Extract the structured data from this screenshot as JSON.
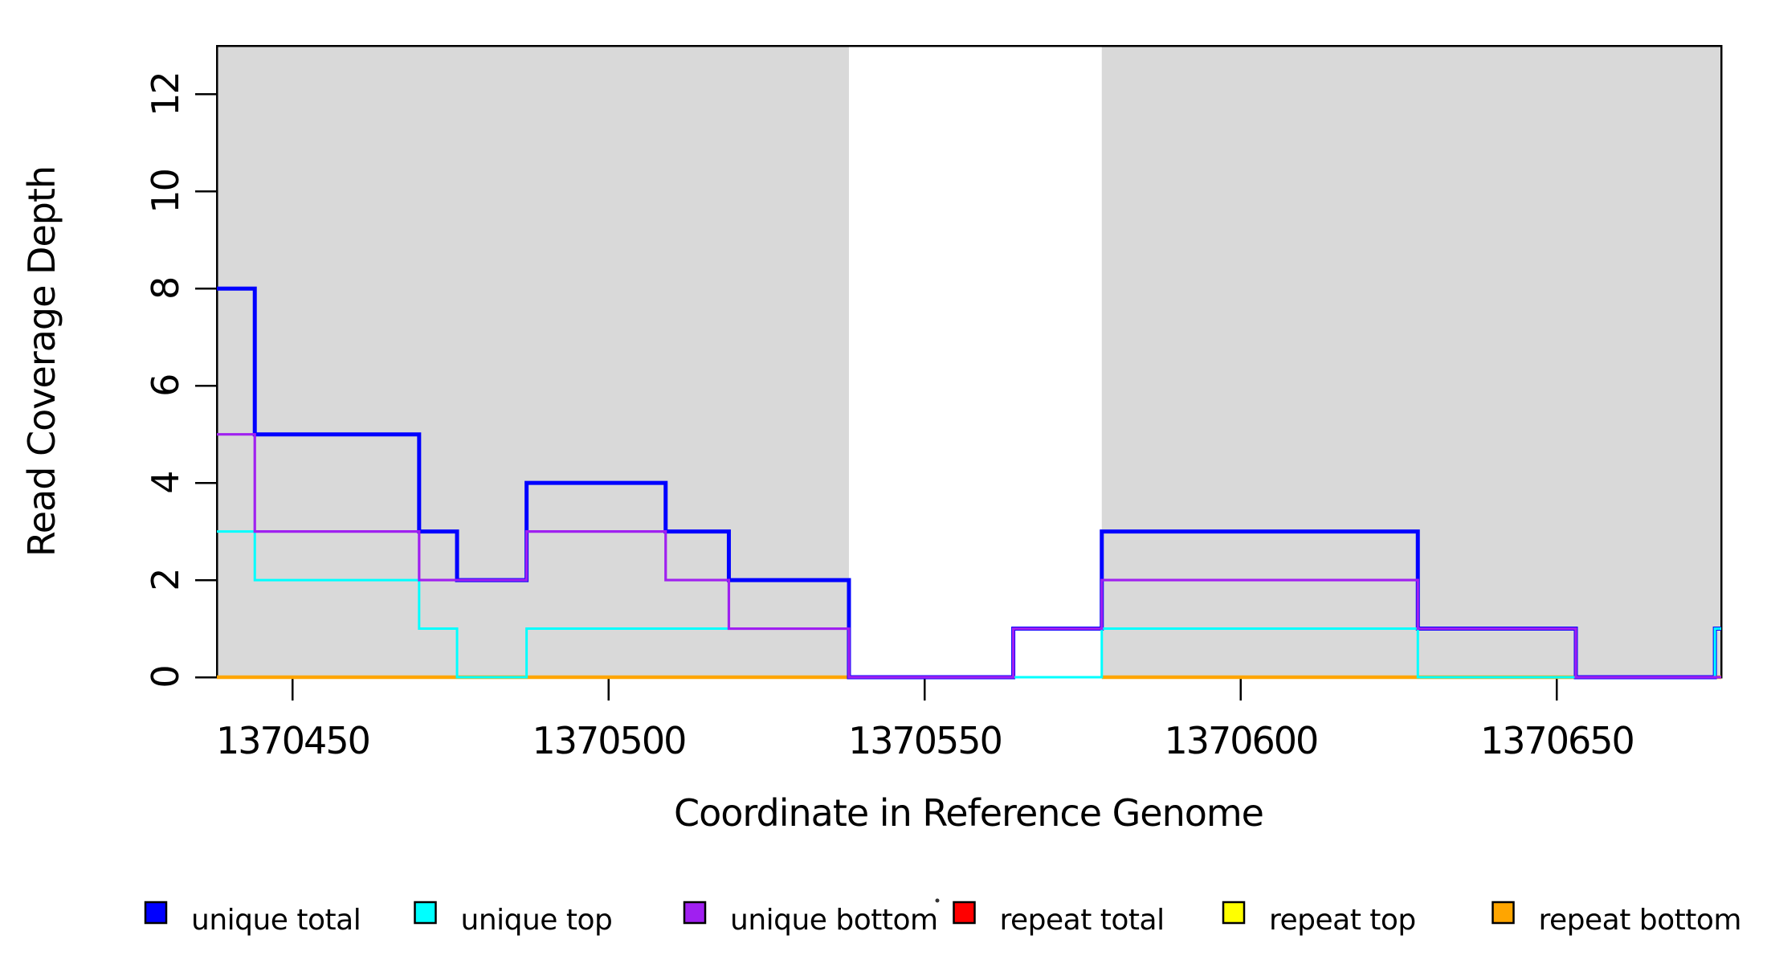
{
  "chart_data": {
    "type": "line",
    "subtype": "step-coverage-plot",
    "title": "",
    "xlabel": "Coordinate in Reference Genome",
    "ylabel": "Read Coverage Depth",
    "xlim": [
      1370438,
      1370676
    ],
    "ylim": [
      0,
      13
    ],
    "x_ticks": [
      1370450,
      1370500,
      1370550,
      1370600,
      1370650
    ],
    "y_ticks": [
      0,
      2,
      4,
      6,
      8,
      10,
      12
    ],
    "grid": false,
    "legend_position": "bottom-horizontal",
    "shaded_regions": [
      {
        "name": "repeat-region-1",
        "start": 1370438,
        "end": 1370538,
        "color": "#D9D9D9"
      },
      {
        "name": "repeat-region-2",
        "start": 1370578,
        "end": 1370676,
        "color": "#D9D9D9"
      }
    ],
    "series": [
      {
        "name": "unique total",
        "color": "#0000FF",
        "line_width": 5,
        "x": [
          1370438,
          1370444,
          1370470,
          1370476,
          1370487,
          1370509,
          1370519,
          1370538,
          1370564,
          1370578,
          1370628,
          1370653,
          1370675
        ],
        "y": [
          8,
          5,
          3,
          2,
          4,
          3,
          2,
          0,
          1,
          3,
          1,
          0,
          1
        ]
      },
      {
        "name": "unique top",
        "color": "#00FFFF",
        "line_width": 3,
        "x": [
          1370438,
          1370444,
          1370470,
          1370476,
          1370487,
          1370538,
          1370578,
          1370628,
          1370675
        ],
        "y": [
          3,
          2,
          1,
          0,
          1,
          0,
          1,
          0,
          1
        ]
      },
      {
        "name": "unique bottom",
        "color": "#A020F0",
        "line_width": 3.2,
        "x": [
          1370438,
          1370444,
          1370470,
          1370487,
          1370509,
          1370519,
          1370538,
          1370564,
          1370578,
          1370628,
          1370653
        ],
        "y": [
          5,
          3,
          2,
          3,
          2,
          1,
          0,
          1,
          2,
          1,
          0
        ]
      },
      {
        "name": "repeat total",
        "color": "#FF0000",
        "line_width": 3,
        "constant": 0,
        "regions_only": true
      },
      {
        "name": "repeat top",
        "color": "#FFFF00",
        "line_width": 3,
        "constant": 0,
        "regions_only": true
      },
      {
        "name": "repeat bottom",
        "color": "#FFA500",
        "line_width": 4.5,
        "constant": 0,
        "regions_only": true
      }
    ],
    "draw_order": [
      3,
      4,
      5,
      0,
      1,
      2
    ],
    "frame_color": "#000000",
    "background_color": "#FFFFFF"
  },
  "legend": {
    "items": [
      {
        "label": "unique total",
        "color": "#0000FF"
      },
      {
        "label": "unique top",
        "color": "#00FFFF"
      },
      {
        "label": "unique bottom",
        "color": "#A020F0"
      },
      {
        "label": "repeat total",
        "color": "#FF0000"
      },
      {
        "label": "repeat top",
        "color": "#FFFF00"
      },
      {
        "label": "repeat bottom",
        "color": "#FFA500"
      }
    ]
  }
}
